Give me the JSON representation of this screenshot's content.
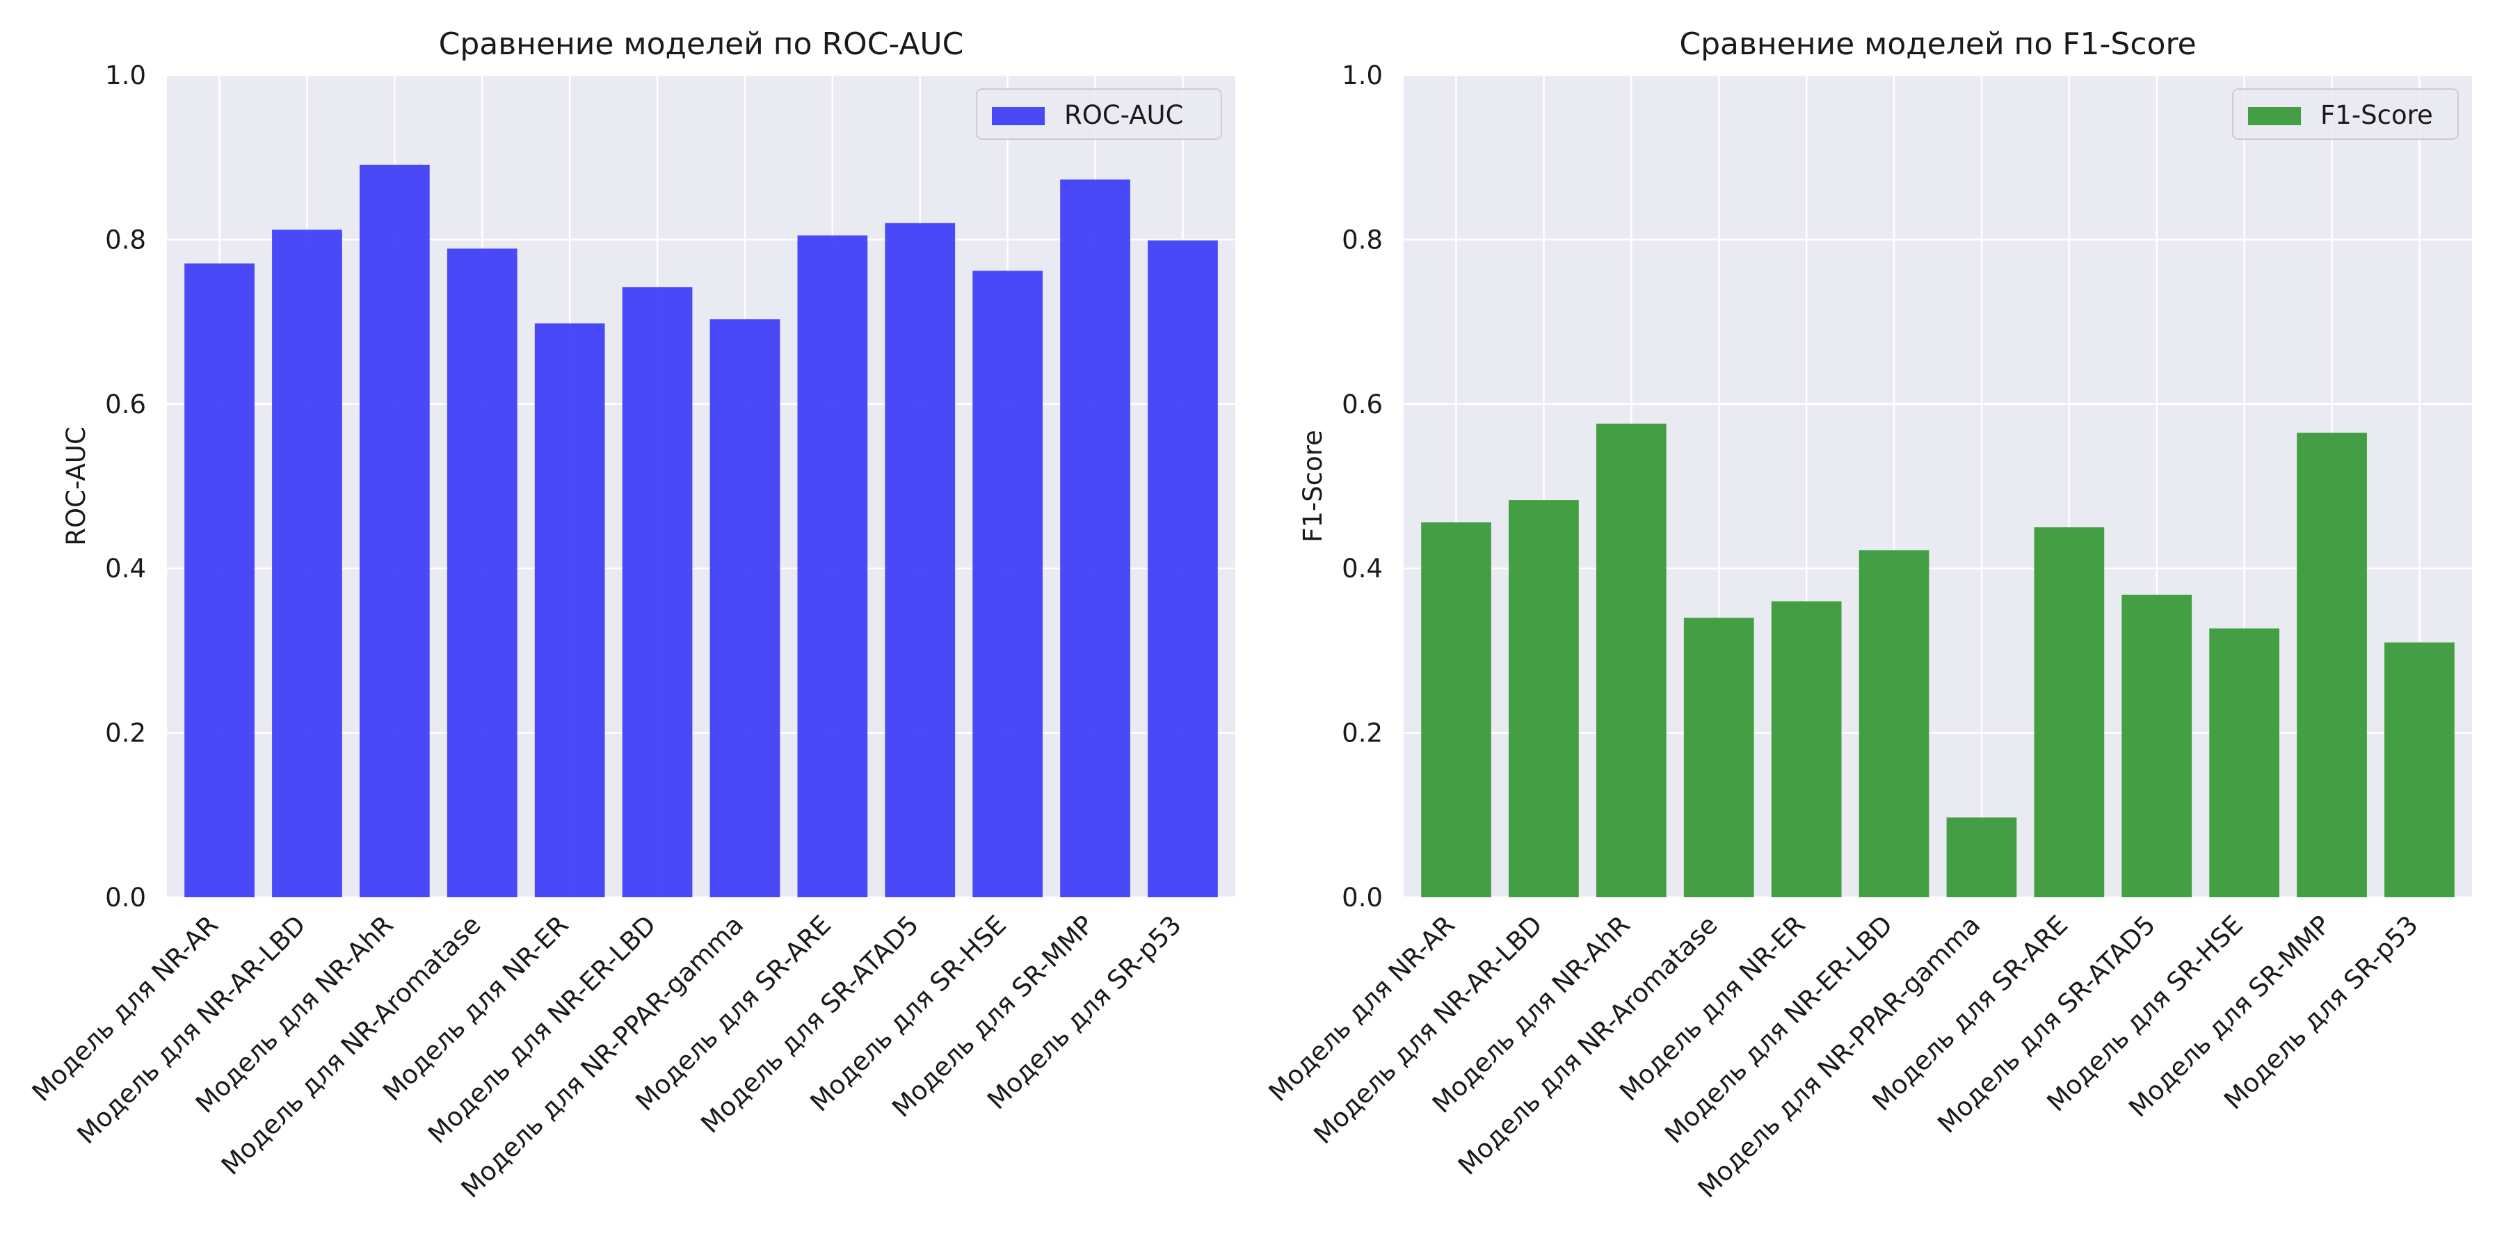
{
  "chart_data": [
    {
      "type": "bar",
      "title": "Сравнение моделей по ROC-AUC",
      "xlabel": "",
      "ylabel": "ROC-AUC",
      "ylim": [
        0,
        1.0
      ],
      "yticks": [
        "0.0",
        "0.2",
        "0.4",
        "0.6",
        "0.8",
        "1.0"
      ],
      "categories": [
        "Модель для NR-AR",
        "Модель для NR-AR-LBD",
        "Модель для NR-AhR",
        "Модель для NR-Aromatase",
        "Модель для NR-ER",
        "Модель для NR-ER-LBD",
        "Модель для NR-PPAR-gamma",
        "Модель для SR-ARE",
        "Модель для SR-ATAD5",
        "Модель для SR-HSE",
        "Модель для SR-MMP",
        "Модель для SR-p53"
      ],
      "series": [
        {
          "name": "ROC-AUC",
          "color": "#4040f8",
          "values": [
            0.771,
            0.812,
            0.891,
            0.789,
            0.698,
            0.742,
            0.703,
            0.805,
            0.82,
            0.762,
            0.873,
            0.799
          ]
        }
      ],
      "grid": true,
      "legend": "top-right"
    },
    {
      "type": "bar",
      "title": "Сравнение моделей по F1-Score",
      "xlabel": "",
      "ylabel": "F1-Score",
      "ylim": [
        0,
        1.0
      ],
      "yticks": [
        "0.0",
        "0.2",
        "0.4",
        "0.6",
        "0.8",
        "1.0"
      ],
      "categories": [
        "Модель для NR-AR",
        "Модель для NR-AR-LBD",
        "Модель для NR-AhR",
        "Модель для NR-Aromatase",
        "Модель для NR-ER",
        "Модель для NR-ER-LBD",
        "Модель для NR-PPAR-gamma",
        "Модель для SR-ARE",
        "Модель для SR-ATAD5",
        "Модель для SR-HSE",
        "Модель для SR-MMP",
        "Модель для SR-p53"
      ],
      "series": [
        {
          "name": "F1-Score",
          "color": "#3a9a3a",
          "values": [
            0.456,
            0.483,
            0.576,
            0.34,
            0.36,
            0.422,
            0.097,
            0.45,
            0.368,
            0.327,
            0.565,
            0.31
          ]
        }
      ],
      "grid": true,
      "legend": "top-right"
    }
  ]
}
